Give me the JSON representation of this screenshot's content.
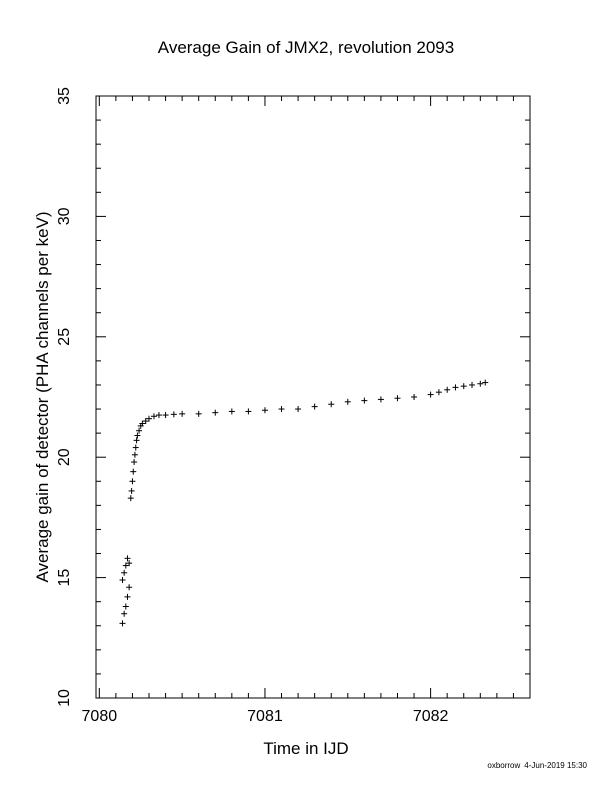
{
  "chart_data": {
    "type": "scatter",
    "title": "Average Gain of JMX2, revolution 2093",
    "xlabel": "Time in IJD",
    "ylabel": "Average gain of detector (PHA channels per keV)",
    "xlim": [
      7079.98,
      7082.6
    ],
    "ylim": [
      10,
      35
    ],
    "xticks": [
      7080,
      7081,
      7082
    ],
    "yticks": [
      10,
      15,
      20,
      25,
      30,
      35
    ],
    "marker": "plus",
    "grid": false,
    "series": [
      {
        "x": [
          7080.14,
          7080.15,
          7080.16,
          7080.17,
          7080.18,
          7080.14,
          7080.15,
          7080.16,
          7080.17,
          7080.18,
          7080.19,
          7080.195,
          7080.2,
          7080.205,
          7080.21,
          7080.215,
          7080.22,
          7080.225,
          7080.23,
          7080.24,
          7080.25,
          7080.26,
          7080.28,
          7080.3,
          7080.33,
          7080.36,
          7080.4,
          7080.45,
          7080.5,
          7080.6,
          7080.7,
          7080.8,
          7080.9,
          7081.0,
          7081.1,
          7081.2,
          7081.3,
          7081.4,
          7081.5,
          7081.6,
          7081.7,
          7081.8,
          7081.9,
          7082.0,
          7082.05,
          7082.1,
          7082.15,
          7082.2,
          7082.25,
          7082.3,
          7082.33
        ],
        "y": [
          13.1,
          13.5,
          13.8,
          14.2,
          14.6,
          14.9,
          15.2,
          15.5,
          15.8,
          15.6,
          18.3,
          18.6,
          19.0,
          19.4,
          19.8,
          20.1,
          20.4,
          20.7,
          20.9,
          21.1,
          21.3,
          21.4,
          21.5,
          21.6,
          21.7,
          21.75,
          21.75,
          21.78,
          21.8,
          21.8,
          21.85,
          21.9,
          21.9,
          21.95,
          22.0,
          22.0,
          22.1,
          22.2,
          22.3,
          22.35,
          22.4,
          22.45,
          22.5,
          22.6,
          22.7,
          22.8,
          22.9,
          22.95,
          23.0,
          23.05,
          23.1
        ]
      }
    ]
  },
  "footer": {
    "author": "oxborrow",
    "timestamp": "4-Jun-2019 15:30"
  }
}
